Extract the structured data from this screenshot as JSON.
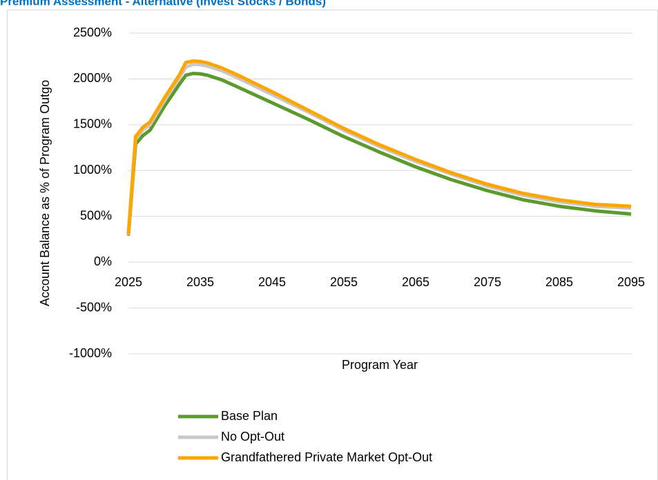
{
  "chart_data": {
    "type": "line",
    "title": "Premium Assessment - Alternative (Invest Stocks / Bonds)",
    "x_label": "Program Year",
    "y_label": "Account Balance as % of Program Outgo",
    "x": [
      2025,
      2026,
      2027,
      2028,
      2030,
      2032,
      2033,
      2034,
      2035,
      2036,
      2038,
      2040,
      2045,
      2050,
      2055,
      2060,
      2065,
      2070,
      2075,
      2080,
      2085,
      2090,
      2095
    ],
    "series": [
      {
        "name": "Base Plan",
        "color": "#5b9a2f",
        "values": [
          290,
          1290,
          1380,
          1440,
          1700,
          1930,
          2040,
          2060,
          2055,
          2040,
          1990,
          1920,
          1740,
          1560,
          1370,
          1200,
          1040,
          900,
          780,
          680,
          610,
          560,
          525
        ]
      },
      {
        "name": "No Opt-Out",
        "color": "#c8c8c8",
        "values": [
          300,
          1340,
          1440,
          1500,
          1760,
          2000,
          2130,
          2160,
          2155,
          2140,
          2090,
          2020,
          1830,
          1640,
          1440,
          1260,
          1100,
          960,
          830,
          730,
          660,
          610,
          590
        ]
      },
      {
        "name": "Grandfathered Private Market Opt-Out",
        "color": "#ffa500",
        "values": [
          310,
          1370,
          1470,
          1530,
          1790,
          2030,
          2180,
          2195,
          2190,
          2175,
          2120,
          2050,
          1860,
          1660,
          1460,
          1280,
          1120,
          975,
          850,
          750,
          680,
          630,
          610
        ]
      }
    ],
    "xlim": [
      2025,
      2095
    ],
    "xticks": [
      2025,
      2035,
      2045,
      2055,
      2065,
      2075,
      2085,
      2095
    ],
    "ylim": [
      -1000,
      2500
    ],
    "yticks": [
      {
        "value": -1000,
        "label": "-1000%"
      },
      {
        "value": -500,
        "label": "-500%"
      },
      {
        "value": 0,
        "label": "0%"
      },
      {
        "value": 500,
        "label": "500%"
      },
      {
        "value": 1000,
        "label": "1000%"
      },
      {
        "value": 1500,
        "label": "1500%"
      },
      {
        "value": 2000,
        "label": "2000%"
      },
      {
        "value": 2500,
        "label": "2500%"
      }
    ],
    "grid": true
  }
}
